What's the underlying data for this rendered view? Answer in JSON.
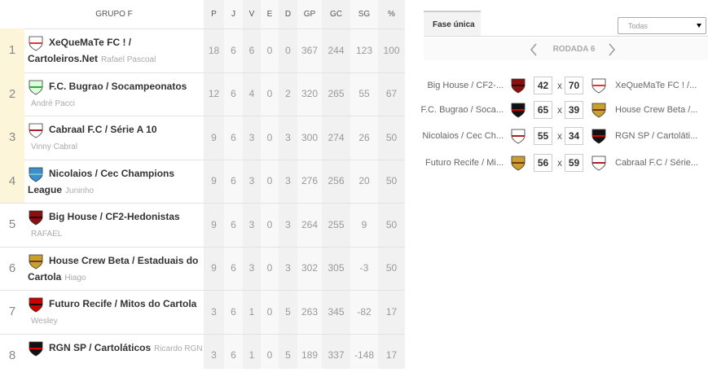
{
  "standings": {
    "title": "GRUPO F",
    "columns": [
      "P",
      "J",
      "V",
      "E",
      "D",
      "GP",
      "GC",
      "SG",
      "%"
    ],
    "rows": [
      {
        "position": 1,
        "team": "XeQueMaTe FC ! / Cartoleiros.Net",
        "owner": "Rafael Pascoal",
        "stats": [
          18,
          6,
          6,
          0,
          0,
          367,
          244,
          123,
          100
        ]
      },
      {
        "position": 2,
        "team": "F.C. Bugrao / Socampeonatos",
        "owner": "André Pacci",
        "stats": [
          12,
          6,
          4,
          0,
          2,
          320,
          265,
          55,
          67
        ]
      },
      {
        "position": 3,
        "team": "Cabraal F.C / Série A 10",
        "owner": "Vinny Cabral",
        "stats": [
          9,
          6,
          3,
          0,
          3,
          300,
          274,
          26,
          50
        ]
      },
      {
        "position": 4,
        "team": "Nicolaios / Cec Champions League",
        "owner": "Juninho",
        "stats": [
          9,
          6,
          3,
          0,
          3,
          276,
          256,
          20,
          50
        ]
      },
      {
        "position": 5,
        "team": "Big House / CF2-Hedonistas",
        "owner": "RAFAEL",
        "stats": [
          9,
          6,
          3,
          0,
          3,
          264,
          255,
          9,
          50
        ]
      },
      {
        "position": 6,
        "team": "House Crew Beta / Estaduais do Cartola",
        "owner": "Hiago",
        "stats": [
          9,
          6,
          3,
          0,
          3,
          302,
          305,
          -3,
          50
        ]
      },
      {
        "position": 7,
        "team": "Futuro Recife / Mitos do Cartola",
        "owner": "Wesley",
        "stats": [
          3,
          6,
          1,
          0,
          5,
          263,
          345,
          -82,
          17
        ]
      },
      {
        "position": 8,
        "team": "RGN SP / Cartoláticos",
        "owner": "Ricardo RGN",
        "stats": [
          3,
          6,
          1,
          0,
          5,
          189,
          337,
          -148,
          17
        ]
      }
    ]
  },
  "panel": {
    "tab": "Fase única",
    "filter": "Todas",
    "round": "RODADA 6",
    "versus": "x",
    "matches": [
      {
        "home": "Big House / CF2-...",
        "home_score": 42,
        "away_score": 70,
        "away": "XeQueMaTe FC ! /..."
      },
      {
        "home": "F.C. Bugrao / Soca...",
        "home_score": 65,
        "away_score": 39,
        "away": "House Crew Beta /..."
      },
      {
        "home": "Nicolaios / Cec Ch...",
        "home_score": 55,
        "away_score": 34,
        "away": "RGN SP / Cartoláti..."
      },
      {
        "home": "Futuro Recife / Mi...",
        "home_score": 56,
        "away_score": 59,
        "away": "Cabraal F.C / Série..."
      }
    ]
  }
}
